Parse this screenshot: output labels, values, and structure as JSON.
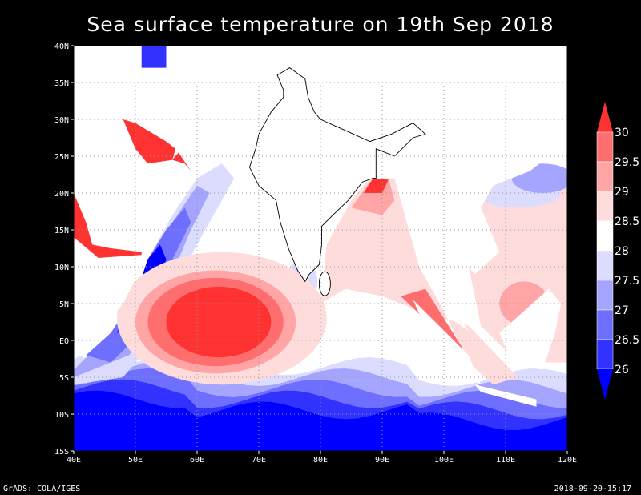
{
  "title": "Sea surface temperature on 19th Sep 2018",
  "map": {
    "lon_range": [
      40,
      120
    ],
    "lat_range": [
      -15,
      40
    ],
    "x_ticks": [
      "40E",
      "50E",
      "60E",
      "70E",
      "80E",
      "90E",
      "100E",
      "110E",
      "120E"
    ],
    "y_ticks": [
      "40N",
      "35N",
      "30N",
      "25N",
      "20N",
      "15N",
      "10N",
      "5N",
      "EQ",
      "5S",
      "10S",
      "15S"
    ]
  },
  "colorbar": {
    "labels": [
      "30",
      "29.5",
      "29",
      "28.5",
      "28",
      "27.5",
      "27",
      "26.5",
      "26"
    ],
    "colors": [
      "#ff3232",
      "#ff6e6e",
      "#ffa5a5",
      "#ffdcdc",
      "#ffffff",
      "#dcdcff",
      "#a5a5ff",
      "#6e6eff",
      "#3232ff",
      "#0000ff"
    ]
  },
  "footer": {
    "left": "GrADS: COLA/IGES",
    "right": "2018-09-20-15:17"
  }
}
